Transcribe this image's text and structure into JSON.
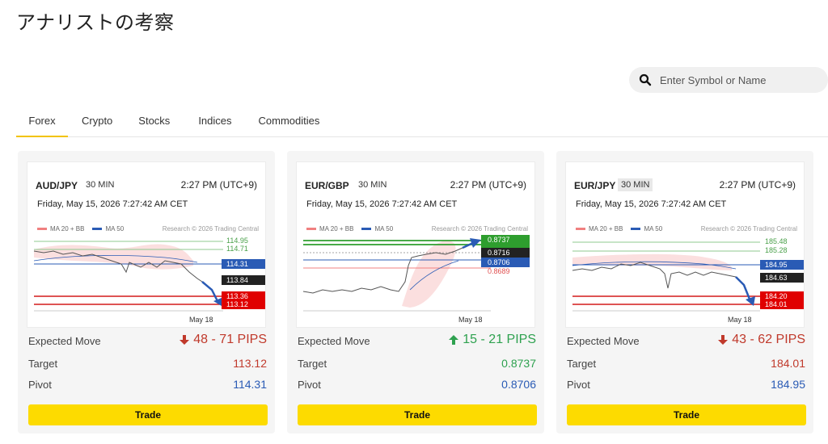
{
  "page": {
    "title": "アナリストの考察"
  },
  "search": {
    "placeholder": "Enter Symbol or Name"
  },
  "tabs": [
    {
      "label": "Forex",
      "active": true
    },
    {
      "label": "Crypto",
      "active": false
    },
    {
      "label": "Stocks",
      "active": false
    },
    {
      "label": "Indices",
      "active": false
    },
    {
      "label": "Commodities",
      "active": false
    }
  ],
  "common": {
    "legend_ma20": "MA 20 + BB",
    "legend_ma50": "MA 50",
    "research": "Research © 2026 Trading Central",
    "expected_move_label": "Expected Move",
    "target_label": "Target",
    "pivot_label": "Pivot",
    "trade_label": "Trade",
    "colors": {
      "accent": "#fddb00",
      "down": "#c0392b",
      "up": "#2ea14f",
      "pivot": "#2a5bb5",
      "ma20": "#f08080",
      "ma50": "#2a5bb5"
    }
  },
  "cards": [
    {
      "symbol": "AUD/JPY",
      "timeframe": "30 MIN",
      "time": "2:27 PM (UTC+9)",
      "date": "Friday, May 15, 2026 7:27:42 AM CET",
      "direction": "down",
      "expected_move": "48 - 71 PIPS",
      "target": "113.12",
      "pivot": "114.31",
      "chart_data": {
        "type": "line",
        "xlabel_tick": "May 18",
        "levels": [
          {
            "label": "114.95",
            "value": 114.95,
            "kind": "resistance-green"
          },
          {
            "label": "114.71",
            "value": 114.71,
            "kind": "resistance-green"
          },
          {
            "label": "114.31",
            "value": 114.31,
            "kind": "pivot"
          },
          {
            "label": "113.84",
            "value": 113.84,
            "kind": "last"
          },
          {
            "label": "113.36",
            "value": 113.36,
            "kind": "target-red"
          },
          {
            "label": "113.12",
            "value": 113.12,
            "kind": "target-red"
          }
        ]
      }
    },
    {
      "symbol": "EUR/GBP",
      "timeframe": "30 MIN",
      "time": "2:27 PM (UTC+9)",
      "date": "Friday, May 15, 2026 7:27:42 AM CET",
      "direction": "up",
      "expected_move": "15 - 21 PIPS",
      "target": "0.8737",
      "pivot": "0.8706",
      "chart_data": {
        "type": "line",
        "xlabel_tick": "May 18",
        "levels": [
          {
            "label": "0.8737",
            "value": 0.8737,
            "kind": "target-green"
          },
          {
            "label": "0.8716",
            "value": 0.8716,
            "kind": "last"
          },
          {
            "label": "0.8706",
            "value": 0.8706,
            "kind": "pivot"
          },
          {
            "label": "0.8689",
            "value": 0.8689,
            "kind": "support-red"
          }
        ]
      }
    },
    {
      "symbol": "EUR/JPY",
      "timeframe": "30 MIN",
      "time": "2:27 PM (UTC+9)",
      "date": "Friday, May 15, 2026 7:27:42 AM CET",
      "direction": "down",
      "expected_move": "43 - 62 PIPS",
      "target": "184.01",
      "pivot": "184.95",
      "chart_data": {
        "type": "line",
        "xlabel_tick": "May 18",
        "levels": [
          {
            "label": "185.48",
            "value": 185.48,
            "kind": "resistance-green"
          },
          {
            "label": "185.28",
            "value": 185.28,
            "kind": "resistance-green"
          },
          {
            "label": "184.95",
            "value": 184.95,
            "kind": "pivot"
          },
          {
            "label": "184.63",
            "value": 184.63,
            "kind": "last"
          },
          {
            "label": "184.20",
            "value": 184.2,
            "kind": "target-red"
          },
          {
            "label": "184.01",
            "value": 184.01,
            "kind": "target-red"
          }
        ]
      }
    }
  ]
}
